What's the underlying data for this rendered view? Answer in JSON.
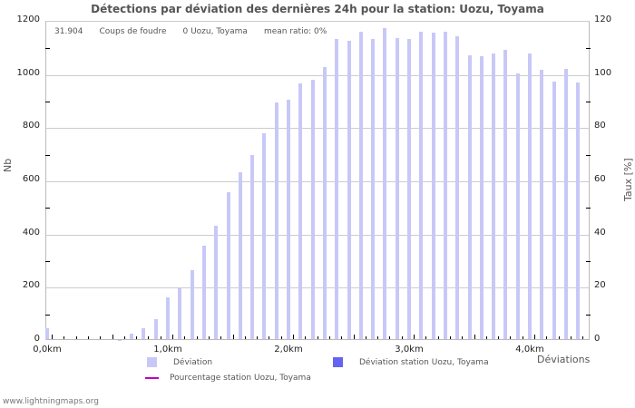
{
  "title": "Détections par déviation des dernières 24h pour la station: Uozu, Toyama",
  "info": {
    "count": "31.904",
    "count_label": "Coups de foudre",
    "station_count": "0 Uozu, Toyama",
    "mean_ratio": "mean ratio: 0%"
  },
  "axes": {
    "left_title": "Nb",
    "right_title": "Taux [%]",
    "x_title": "Déviations",
    "left_ticks": [
      "0",
      "200",
      "400",
      "600",
      "800",
      "1000",
      "1200"
    ],
    "right_ticks": [
      "0",
      "20",
      "40",
      "60",
      "80",
      "100",
      "120"
    ],
    "x_ticks": [
      "0,0km",
      "1,0km",
      "2,0km",
      "3,0km",
      "4,0km"
    ]
  },
  "legend": {
    "deviation": "Déviation",
    "deviation_station": "Déviation station Uozu, Toyama",
    "percentage_station": "Pourcentage station Uozu, Toyama"
  },
  "colors": {
    "deviation": "#c8c8f8",
    "deviation_station": "#6464f0",
    "percentage_station": "#c000c0"
  },
  "footer": "www.lightningmaps.org",
  "chart_data": {
    "type": "bar",
    "title": "Détections par déviation des dernières 24h pour la station: Uozu, Toyama",
    "xlabel": "Déviations",
    "ylabel": "Nb",
    "y2label": "Taux [%]",
    "ylim": [
      0,
      1200
    ],
    "y2lim": [
      0,
      120
    ],
    "grid": true,
    "legend_position": "bottom",
    "x_unit": "km",
    "categories": [
      "0.0",
      "0.1",
      "0.2",
      "0.3",
      "0.4",
      "0.5",
      "0.6",
      "0.7",
      "0.8",
      "0.9",
      "1.0",
      "1.1",
      "1.2",
      "1.3",
      "1.4",
      "1.5",
      "1.6",
      "1.7",
      "1.8",
      "1.9",
      "2.0",
      "2.1",
      "2.2",
      "2.3",
      "2.4",
      "2.5",
      "2.6",
      "2.7",
      "2.8",
      "2.9",
      "3.0",
      "3.1",
      "3.2",
      "3.3",
      "3.4",
      "3.5",
      "3.6",
      "3.7",
      "3.8",
      "3.9",
      "4.0",
      "4.1",
      "4.2",
      "4.3",
      "4.4"
    ],
    "series": [
      {
        "name": "Déviation",
        "axis": "left",
        "values": [
          43,
          0,
          0,
          0,
          3,
          2,
          1,
          23,
          44,
          79,
          161,
          195,
          263,
          356,
          431,
          557,
          632,
          694,
          779,
          892,
          903,
          964,
          978,
          1026,
          1132,
          1125,
          1159,
          1132,
          1173,
          1135,
          1132,
          1159,
          1156,
          1159,
          1142,
          1070,
          1067,
          1077,
          1091,
          1002,
          1077,
          1015,
          971,
          1019,
          968
        ]
      },
      {
        "name": "Déviation station Uozu, Toyama",
        "axis": "left",
        "values": [
          0,
          0,
          0,
          0,
          0,
          0,
          0,
          0,
          0,
          0,
          0,
          0,
          0,
          0,
          0,
          0,
          0,
          0,
          0,
          0,
          0,
          0,
          0,
          0,
          0,
          0,
          0,
          0,
          0,
          0,
          0,
          0,
          0,
          0,
          0,
          0,
          0,
          0,
          0,
          0,
          0,
          0,
          0,
          0,
          0
        ]
      },
      {
        "name": "Pourcentage station Uozu, Toyama",
        "axis": "right",
        "type": "line",
        "values": []
      }
    ]
  }
}
